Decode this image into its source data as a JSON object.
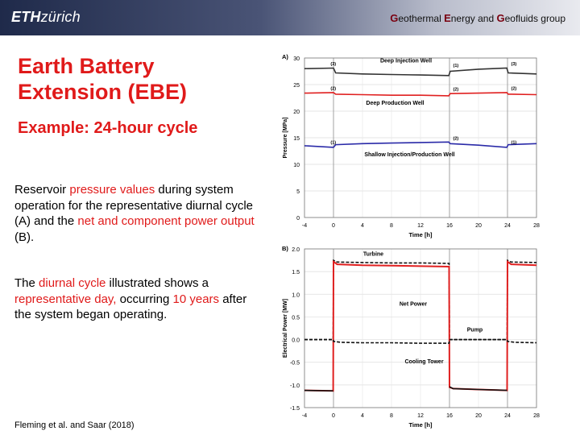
{
  "header": {
    "logo_bold": "ETH",
    "logo_rest": "zürich",
    "group_parts": [
      {
        "text": "G",
        "cap": true
      },
      {
        "text": "eothermal ",
        "cap": false
      },
      {
        "text": "E",
        "cap": true
      },
      {
        "text": "nergy and ",
        "cap": false
      },
      {
        "text": "G",
        "cap": true
      },
      {
        "text": "eofluids",
        "cap": false
      },
      {
        "text": " group",
        "cap": false
      }
    ]
  },
  "slide": {
    "title": "Earth Battery Extension (EBE)",
    "subtitle": "Example: 24-hour cycle",
    "paragraph1": [
      {
        "text": "Reservoir ",
        "hl": false
      },
      {
        "text": "pressure values",
        "hl": true
      },
      {
        "text": " during system operation for the representative diurnal cycle (A) and the ",
        "hl": false
      },
      {
        "text": "net and component power output",
        "hl": true
      },
      {
        "text": " (B).",
        "hl": false
      }
    ],
    "paragraph2": [
      {
        "text": "The ",
        "hl": false
      },
      {
        "text": "diurnal cycle",
        "hl": true
      },
      {
        "text": " illustrated shows a ",
        "hl": false
      },
      {
        "text": "representative day,",
        "hl": true
      },
      {
        "text": " occurring ",
        "hl": false
      },
      {
        "text": "10 years",
        "hl": true
      },
      {
        "text": " after the system began operating.",
        "hl": false
      }
    ],
    "citation": "Fleming et al. and Saar (2018)"
  },
  "chart_data": [
    {
      "type": "line",
      "panel_label": "A)",
      "xlabel": "Time [h]",
      "ylabel": "Pressure [MPa]",
      "xlim": [
        -4,
        28
      ],
      "ylim": [
        0,
        30
      ],
      "xticks": [
        -4,
        0,
        4,
        8,
        12,
        16,
        20,
        24,
        28
      ],
      "yticks": [
        0,
        5,
        10,
        15,
        20,
        25,
        30
      ],
      "vlines": [
        0,
        16,
        24
      ],
      "series": [
        {
          "name": "Deep Injection Well",
          "color": "#333333",
          "dash": false,
          "x": [
            -4,
            0,
            0.3,
            4,
            8,
            12,
            15.9,
            16.1,
            20,
            23.9,
            24.1,
            28
          ],
          "y": [
            28.0,
            28.1,
            27.2,
            27.0,
            26.9,
            26.8,
            26.7,
            27.5,
            27.9,
            28.1,
            27.2,
            27.0
          ]
        },
        {
          "name": "Deep Production Well",
          "color": "#e02020",
          "dash": false,
          "x": [
            -4,
            0,
            0.3,
            4,
            8,
            12,
            15.9,
            16.1,
            20,
            23.9,
            24.1,
            28
          ],
          "y": [
            23.4,
            23.5,
            23.2,
            23.1,
            23.0,
            23.0,
            22.9,
            23.3,
            23.4,
            23.5,
            23.2,
            23.1
          ]
        },
        {
          "name": "Shallow Injection/Production Well",
          "color": "#2a2aa8",
          "dash": false,
          "x": [
            -4,
            0,
            0.3,
            4,
            8,
            12,
            15.9,
            16.1,
            20,
            23.9,
            24.1,
            28
          ],
          "y": [
            13.5,
            13.2,
            13.7,
            13.9,
            14.0,
            14.1,
            14.2,
            13.9,
            13.6,
            13.2,
            13.7,
            13.9
          ]
        }
      ],
      "annotations": [
        {
          "text": "Deep Injection Well",
          "x": 10,
          "y": 29.2
        },
        {
          "text": "Deep Production Well",
          "x": 8.5,
          "y": 21.2
        },
        {
          "text": "Shallow Injection/Production Well",
          "x": 10.5,
          "y": 11.5
        }
      ],
      "markers": [
        {
          "text": "(3)",
          "x": -0.4,
          "y": 28.6
        },
        {
          "text": "(2)",
          "x": -0.4,
          "y": 24.0
        },
        {
          "text": "(1)",
          "x": -0.4,
          "y": 13.9
        },
        {
          "text": "(1)",
          "x": 16.5,
          "y": 28.3
        },
        {
          "text": "(2)",
          "x": 16.5,
          "y": 23.9
        },
        {
          "text": "(2)",
          "x": 16.5,
          "y": 14.6
        },
        {
          "text": "(3)",
          "x": 24.5,
          "y": 28.6
        },
        {
          "text": "(2)",
          "x": 24.5,
          "y": 24.0
        },
        {
          "text": "(1)",
          "x": 24.5,
          "y": 13.9
        }
      ]
    },
    {
      "type": "line",
      "panel_label": "B)",
      "xlabel": "Time [h]",
      "ylabel": "Electrical Power [MW]",
      "xlim": [
        -4,
        28
      ],
      "ylim": [
        -1.5,
        2.0
      ],
      "xticks": [
        -4,
        0,
        4,
        8,
        12,
        16,
        20,
        24,
        28
      ],
      "yticks": [
        -1.5,
        -1.0,
        -0.5,
        0.0,
        0.5,
        1.0,
        1.5,
        2.0
      ],
      "ytick_labels": [
        "-1.5",
        "-1.0",
        "-0.5",
        "0.0",
        "0.5",
        "1.0",
        "1.5",
        "2.0"
      ],
      "vlines": [
        0,
        16,
        24
      ],
      "series": [
        {
          "name": "Turbine",
          "color": "#111111",
          "dash": true,
          "x": [
            -4,
            -0.05,
            0,
            0.5,
            4,
            8,
            12,
            15.95,
            16,
            20,
            23.95,
            24,
            24.5,
            28
          ],
          "y": [
            0,
            0,
            1.75,
            1.71,
            1.7,
            1.69,
            1.69,
            1.68,
            0,
            0,
            0,
            1.75,
            1.71,
            1.7
          ]
        },
        {
          "name": "Net Power",
          "color": "#e02020",
          "dash": false,
          "x": [
            -4,
            -0.05,
            0,
            0.5,
            4,
            8,
            12,
            15.95,
            16,
            16.5,
            20,
            23.95,
            24,
            24.5,
            28
          ],
          "y": [
            -1.12,
            -1.13,
            1.72,
            1.66,
            1.64,
            1.63,
            1.62,
            1.61,
            -1.05,
            -1.08,
            -1.1,
            -1.12,
            1.72,
            1.66,
            1.64
          ]
        },
        {
          "name": "Pump",
          "color": "#111111",
          "dash": true,
          "x": [
            -4,
            -0.05,
            0,
            1,
            4,
            8,
            12,
            15.95,
            16,
            20,
            23.95,
            24,
            25,
            28
          ],
          "y": [
            0,
            0,
            -0.04,
            -0.06,
            -0.07,
            -0.07,
            -0.08,
            -0.08,
            0,
            0,
            0,
            -0.04,
            -0.06,
            -0.07
          ]
        },
        {
          "name": "Cooling Tower",
          "color": "#111111",
          "dash": false,
          "x": [
            -4,
            -0.05,
            -0.05,
            15.95,
            16,
            16.5,
            20,
            23.95
          ],
          "y": [
            -1.12,
            -1.13,
            null,
            null,
            -1.04,
            -1.08,
            -1.1,
            -1.12
          ]
        }
      ],
      "annotations": [
        {
          "text": "Turbine",
          "x": 5.5,
          "y": 1.85
        },
        {
          "text": "Net Power",
          "x": 11,
          "y": 0.75
        },
        {
          "text": "Pump",
          "x": 19.5,
          "y": 0.18
        },
        {
          "text": "Cooling Tower",
          "x": 12.5,
          "y": -0.52
        }
      ]
    }
  ]
}
